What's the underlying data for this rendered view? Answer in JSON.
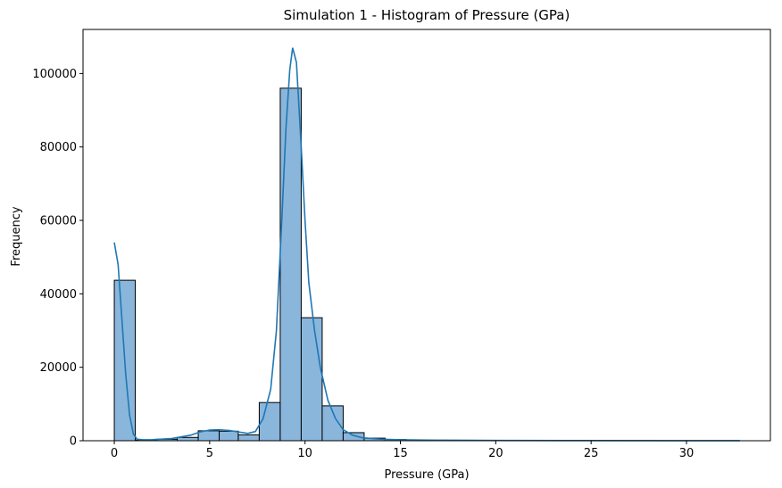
{
  "chart_data": {
    "type": "bar",
    "title": "Simulation 1 - Histogram of Pressure (GPa)",
    "xlabel": "Pressure (GPa)",
    "ylabel": "Frequency",
    "xlim": [
      -1.64,
      34.4
    ],
    "ylim": [
      0,
      112000
    ],
    "x_ticks": [
      0,
      5,
      10,
      15,
      20,
      25,
      30
    ],
    "y_ticks": [
      0,
      20000,
      40000,
      60000,
      80000,
      100000
    ],
    "grid": false,
    "bar_color": "#8ab6dc",
    "bar_edge_color": "#000000",
    "kde_color": "#1f77b4",
    "bins": [
      {
        "x0": 0.0,
        "x1": 1.1,
        "count": 43700
      },
      {
        "x0": 1.1,
        "x1": 2.2,
        "count": 200
      },
      {
        "x0": 2.2,
        "x1": 3.3,
        "count": 400
      },
      {
        "x0": 3.3,
        "x1": 4.4,
        "count": 900
      },
      {
        "x0": 4.4,
        "x1": 5.5,
        "count": 2700
      },
      {
        "x0": 5.5,
        "x1": 6.5,
        "count": 2600
      },
      {
        "x0": 6.5,
        "x1": 7.6,
        "count": 1600
      },
      {
        "x0": 7.6,
        "x1": 8.7,
        "count": 10400
      },
      {
        "x0": 8.7,
        "x1": 9.8,
        "count": 96000
      },
      {
        "x0": 9.8,
        "x1": 10.9,
        "count": 33500
      },
      {
        "x0": 10.9,
        "x1": 12.0,
        "count": 9500
      },
      {
        "x0": 12.0,
        "x1": 13.1,
        "count": 2200
      },
      {
        "x0": 13.1,
        "x1": 14.2,
        "count": 700
      },
      {
        "x0": 14.2,
        "x1": 15.3,
        "count": 350
      },
      {
        "x0": 15.3,
        "x1": 16.4,
        "count": 200
      },
      {
        "x0": 16.4,
        "x1": 17.5,
        "count": 150
      },
      {
        "x0": 17.5,
        "x1": 18.6,
        "count": 100
      },
      {
        "x0": 18.6,
        "x1": 19.7,
        "count": 80
      },
      {
        "x0": 19.7,
        "x1": 20.8,
        "count": 60
      },
      {
        "x0": 20.8,
        "x1": 21.8,
        "count": 50
      },
      {
        "x0": 21.8,
        "x1": 22.9,
        "count": 40
      },
      {
        "x0": 22.9,
        "x1": 24.0,
        "count": 30
      },
      {
        "x0": 24.0,
        "x1": 25.1,
        "count": 25
      },
      {
        "x0": 25.1,
        "x1": 26.2,
        "count": 20
      },
      {
        "x0": 26.2,
        "x1": 27.3,
        "count": 15
      },
      {
        "x0": 27.3,
        "x1": 28.4,
        "count": 12
      },
      {
        "x0": 28.4,
        "x1": 29.5,
        "count": 10
      },
      {
        "x0": 29.5,
        "x1": 30.6,
        "count": 8
      },
      {
        "x0": 30.6,
        "x1": 31.7,
        "count": 6
      },
      {
        "x0": 31.7,
        "x1": 32.8,
        "count": 5
      }
    ],
    "kde": [
      {
        "x": 0.0,
        "y": 54000
      },
      {
        "x": 0.2,
        "y": 48000
      },
      {
        "x": 0.4,
        "y": 33000
      },
      {
        "x": 0.6,
        "y": 18000
      },
      {
        "x": 0.8,
        "y": 7000
      },
      {
        "x": 1.0,
        "y": 1800
      },
      {
        "x": 1.2,
        "y": 400
      },
      {
        "x": 1.5,
        "y": 250
      },
      {
        "x": 2.0,
        "y": 300
      },
      {
        "x": 3.0,
        "y": 600
      },
      {
        "x": 4.0,
        "y": 1500
      },
      {
        "x": 4.5,
        "y": 2400
      },
      {
        "x": 5.0,
        "y": 2900
      },
      {
        "x": 5.5,
        "y": 3000
      },
      {
        "x": 6.0,
        "y": 2800
      },
      {
        "x": 6.5,
        "y": 2400
      },
      {
        "x": 7.0,
        "y": 2000
      },
      {
        "x": 7.4,
        "y": 2500
      },
      {
        "x": 7.8,
        "y": 6000
      },
      {
        "x": 8.2,
        "y": 14000
      },
      {
        "x": 8.5,
        "y": 30000
      },
      {
        "x": 8.8,
        "y": 62000
      },
      {
        "x": 9.0,
        "y": 85000
      },
      {
        "x": 9.2,
        "y": 101000
      },
      {
        "x": 9.35,
        "y": 107000
      },
      {
        "x": 9.55,
        "y": 103000
      },
      {
        "x": 9.8,
        "y": 80000
      },
      {
        "x": 10.0,
        "y": 60000
      },
      {
        "x": 10.2,
        "y": 43000
      },
      {
        "x": 10.5,
        "y": 30000
      },
      {
        "x": 10.8,
        "y": 20000
      },
      {
        "x": 11.2,
        "y": 11000
      },
      {
        "x": 11.6,
        "y": 6000
      },
      {
        "x": 12.0,
        "y": 3000
      },
      {
        "x": 12.5,
        "y": 1500
      },
      {
        "x": 13.0,
        "y": 800
      },
      {
        "x": 14.0,
        "y": 400
      },
      {
        "x": 15.0,
        "y": 250
      },
      {
        "x": 17.0,
        "y": 150
      },
      {
        "x": 20.0,
        "y": 80
      },
      {
        "x": 25.0,
        "y": 40
      },
      {
        "x": 30.0,
        "y": 20
      },
      {
        "x": 32.8,
        "y": 10
      }
    ]
  }
}
